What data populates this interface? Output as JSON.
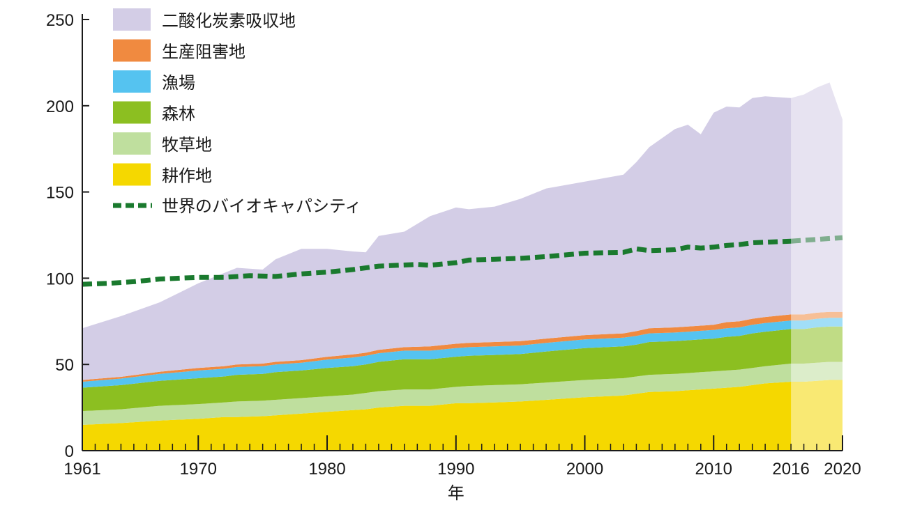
{
  "chart_data": {
    "type": "area",
    "stacked": true,
    "xlabel": "年",
    "ylabel": "",
    "ylim": [
      0,
      250
    ],
    "xlim": [
      1961,
      2020
    ],
    "x_ticks": [
      1961,
      1970,
      1980,
      1990,
      2000,
      2010,
      2016,
      2020
    ],
    "y_ticks": [
      0,
      50,
      100,
      150,
      200,
      250
    ],
    "projection_start": 2016,
    "legend_position": "top-left",
    "x": [
      1961,
      1964,
      1967,
      1970,
      1972,
      1973,
      1975,
      1976,
      1978,
      1980,
      1982,
      1983,
      1984,
      1986,
      1988,
      1990,
      1991,
      1993,
      1995,
      1997,
      2000,
      2003,
      2004,
      2005,
      2007,
      2008,
      2009,
      2010,
      2011,
      2012,
      2013,
      2014,
      2016,
      2017,
      2018,
      2019,
      2020
    ],
    "series": [
      {
        "name": "耕作地",
        "color": "#f5d800",
        "values": [
          15,
          16,
          17.5,
          18.5,
          19.5,
          19.5,
          20,
          20.5,
          21.5,
          22.5,
          23.5,
          24,
          25,
          26,
          26,
          27.5,
          27.5,
          28,
          28.5,
          29.5,
          31,
          32,
          33,
          34,
          34.5,
          35,
          35.5,
          36,
          36.5,
          37,
          38,
          39,
          40,
          40,
          40.5,
          41,
          41
        ]
      },
      {
        "name": "牧草地",
        "color": "#bfdf9e",
        "values": [
          8,
          8,
          8.5,
          8.5,
          8.5,
          9,
          9,
          9,
          9,
          9,
          9,
          9.5,
          9.5,
          9.5,
          9.5,
          9.5,
          10,
          10,
          10,
          10,
          10,
          10,
          10,
          10,
          10,
          10,
          10,
          10,
          10,
          10,
          10,
          10,
          10.5,
          10.5,
          10.5,
          10.5,
          10.5
        ]
      },
      {
        "name": "森林",
        "color": "#8cbf21",
        "values": [
          13.5,
          14,
          14.5,
          15,
          15,
          15.5,
          15.5,
          16,
          16,
          16.5,
          16.5,
          16.5,
          17,
          17.5,
          17.5,
          17.5,
          17.5,
          17.5,
          17.5,
          18,
          18.5,
          18.5,
          18.5,
          19,
          19,
          19,
          19,
          19,
          19.5,
          19.5,
          20,
          20,
          20,
          20,
          20.5,
          20.5,
          20.5
        ]
      },
      {
        "name": "漁場",
        "color": "#55c3f0",
        "values": [
          3.5,
          3.8,
          4,
          4.5,
          4.5,
          4.5,
          4.5,
          4.5,
          4.5,
          4.8,
          5,
          5,
          5,
          5,
          5,
          5,
          5,
          5,
          5,
          5,
          5,
          5,
          5,
          5,
          5,
          5,
          5,
          5,
          5,
          5,
          5,
          5,
          5,
          5,
          5,
          5,
          5
        ]
      },
      {
        "name": "生産阻害地",
        "color": "#f08a40",
        "values": [
          1,
          1,
          1.2,
          1.5,
          1.5,
          1.5,
          1.5,
          1.5,
          1.5,
          1.6,
          1.8,
          1.8,
          2,
          2,
          2.5,
          2.5,
          2.5,
          2.5,
          2.5,
          2.5,
          2.5,
          2.5,
          2.8,
          3,
          3,
          3,
          3,
          3,
          3.5,
          3.5,
          3.5,
          3.5,
          3.5,
          3.5,
          3.5,
          3.5,
          3.5
        ]
      },
      {
        "name": "二酸化炭素吸収地",
        "color": "#d3cde6",
        "values": [
          30,
          35.2,
          40.3,
          49,
          54,
          56,
          54.5,
          59.5,
          64.5,
          62.6,
          59.7,
          58.2,
          66,
          67,
          75.5,
          79,
          77.5,
          78.5,
          82.5,
          87,
          89,
          92,
          98,
          105,
          115,
          117,
          111,
          123,
          125,
          124,
          128,
          128,
          125.5,
          127.5,
          130.5,
          133,
          111.5
        ]
      }
    ],
    "capacity": {
      "name": "世界のバイオキャパシティ",
      "color": "#1a7a2e",
      "style": "dashed",
      "x": [
        1961,
        1963,
        1965,
        1967,
        1970,
        1972,
        1974,
        1976,
        1978,
        1980,
        1982,
        1984,
        1987,
        1988,
        1990,
        1991,
        1993,
        1995,
        1997,
        2000,
        2003,
        2004,
        2005,
        2007,
        2008,
        2009,
        2010,
        2011,
        2012,
        2013,
        2016,
        2020
      ],
      "values": [
        96.5,
        97,
        98,
        99.5,
        100.5,
        100.5,
        101.5,
        101,
        102.5,
        103.5,
        105,
        107,
        108,
        107.5,
        109,
        110.5,
        111,
        111.5,
        112.5,
        114.5,
        115,
        117,
        116,
        116.5,
        118,
        117.5,
        118,
        119,
        119.5,
        120.5,
        121.5,
        123.5
      ]
    }
  }
}
